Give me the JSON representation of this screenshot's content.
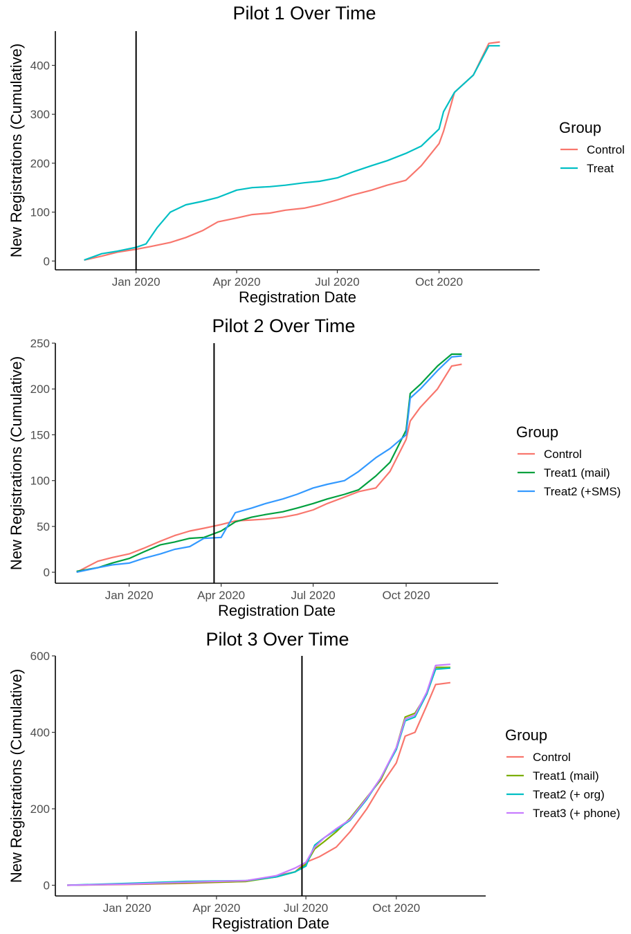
{
  "chart_data": [
    {
      "type": "line",
      "title": "Pilot 1 Over Time",
      "xlabel": "Registration Date",
      "ylabel": "New Registrations (Cumulative)",
      "x_ticks": [
        "Jan 2020",
        "Apr 2020",
        "Jul 2020",
        "Oct 2020"
      ],
      "y_ticks": [
        0,
        100,
        200,
        300,
        400
      ],
      "xlim": [
        "2019-10-20",
        "2020-12-31"
      ],
      "ylim": [
        -18,
        470
      ],
      "vline": "2020-01-01",
      "legend_title": "Group",
      "legend_position": "right",
      "grid": false,
      "series": [
        {
          "name": "Control",
          "color": "#F8766D",
          "x": [
            "2019-11-15",
            "2019-12-01",
            "2019-12-15",
            "2020-01-01",
            "2020-01-15",
            "2020-02-01",
            "2020-02-15",
            "2020-03-01",
            "2020-03-15",
            "2020-04-01",
            "2020-04-15",
            "2020-05-01",
            "2020-05-15",
            "2020-06-01",
            "2020-06-15",
            "2020-07-01",
            "2020-07-15",
            "2020-08-01",
            "2020-08-15",
            "2020-09-01",
            "2020-09-15",
            "2020-10-01",
            "2020-10-05",
            "2020-10-15",
            "2020-11-01",
            "2020-11-15",
            "2020-11-25"
          ],
          "y": [
            2,
            10,
            18,
            24,
            30,
            38,
            48,
            62,
            80,
            88,
            95,
            98,
            104,
            108,
            115,
            125,
            135,
            145,
            155,
            165,
            195,
            240,
            265,
            345,
            380,
            445,
            448
          ]
        },
        {
          "name": "Treat",
          "color": "#00BFC4",
          "x": [
            "2019-11-15",
            "2019-12-01",
            "2019-12-15",
            "2020-01-01",
            "2020-01-10",
            "2020-01-20",
            "2020-02-01",
            "2020-02-15",
            "2020-03-01",
            "2020-03-15",
            "2020-04-01",
            "2020-04-15",
            "2020-05-01",
            "2020-05-15",
            "2020-06-01",
            "2020-06-15",
            "2020-07-01",
            "2020-07-15",
            "2020-08-01",
            "2020-08-15",
            "2020-09-01",
            "2020-09-15",
            "2020-10-01",
            "2020-10-05",
            "2020-10-15",
            "2020-11-01",
            "2020-11-15",
            "2020-11-25"
          ],
          "y": [
            2,
            15,
            20,
            28,
            35,
            68,
            100,
            115,
            122,
            130,
            145,
            150,
            152,
            155,
            160,
            163,
            170,
            182,
            195,
            205,
            220,
            235,
            270,
            305,
            345,
            380,
            440,
            440
          ]
        }
      ]
    },
    {
      "type": "line",
      "title": "Pilot 2 Over Time",
      "xlabel": "Registration Date",
      "ylabel": "New Registrations (Cumulative)",
      "x_ticks": [
        "Jan 2020",
        "Apr 2020",
        "Jul 2020",
        "Oct 2020"
      ],
      "y_ticks": [
        0,
        50,
        100,
        150,
        200,
        250
      ],
      "xlim": [
        "2019-10-20",
        "2020-12-31"
      ],
      "ylim": [
        -12,
        250
      ],
      "vline": "2020-03-25",
      "legend_title": "Group",
      "legend_position": "right",
      "grid": false,
      "series": [
        {
          "name": "Control",
          "color": "#F8766D",
          "x": [
            "2019-11-10",
            "2019-12-01",
            "2019-12-15",
            "2020-01-01",
            "2020-01-15",
            "2020-02-01",
            "2020-02-15",
            "2020-03-01",
            "2020-03-15",
            "2020-04-01",
            "2020-04-15",
            "2020-05-01",
            "2020-05-15",
            "2020-06-01",
            "2020-06-15",
            "2020-07-01",
            "2020-07-15",
            "2020-08-01",
            "2020-08-15",
            "2020-09-01",
            "2020-09-15",
            "2020-10-01",
            "2020-10-05",
            "2020-10-15",
            "2020-11-01",
            "2020-11-15",
            "2020-11-25"
          ],
          "y": [
            0,
            12,
            16,
            20,
            26,
            34,
            40,
            45,
            48,
            52,
            56,
            57,
            58,
            60,
            63,
            68,
            75,
            82,
            88,
            92,
            110,
            145,
            165,
            180,
            200,
            225,
            227
          ]
        },
        {
          "name": "Treat1 (mail)",
          "color": "#00A03E",
          "x": [
            "2019-11-10",
            "2019-12-01",
            "2019-12-15",
            "2020-01-01",
            "2020-01-15",
            "2020-02-01",
            "2020-02-15",
            "2020-03-01",
            "2020-03-15",
            "2020-04-01",
            "2020-04-15",
            "2020-05-01",
            "2020-05-15",
            "2020-06-01",
            "2020-06-15",
            "2020-07-01",
            "2020-07-15",
            "2020-08-01",
            "2020-08-15",
            "2020-09-01",
            "2020-09-15",
            "2020-10-01",
            "2020-10-05",
            "2020-10-15",
            "2020-11-01",
            "2020-11-15",
            "2020-11-25"
          ],
          "y": [
            1,
            5,
            10,
            15,
            22,
            30,
            33,
            37,
            38,
            45,
            55,
            60,
            63,
            66,
            70,
            75,
            80,
            85,
            90,
            105,
            120,
            155,
            195,
            205,
            225,
            238,
            238
          ]
        },
        {
          "name": "Treat2 (+SMS)",
          "color": "#3399FF",
          "x": [
            "2019-11-10",
            "2019-12-01",
            "2019-12-15",
            "2020-01-01",
            "2020-01-15",
            "2020-02-01",
            "2020-02-15",
            "2020-03-01",
            "2020-03-15",
            "2020-04-01",
            "2020-04-15",
            "2020-05-01",
            "2020-05-15",
            "2020-06-01",
            "2020-06-15",
            "2020-07-01",
            "2020-07-15",
            "2020-08-01",
            "2020-08-15",
            "2020-09-01",
            "2020-09-15",
            "2020-10-01",
            "2020-10-05",
            "2020-10-15",
            "2020-11-01",
            "2020-11-15",
            "2020-11-25"
          ],
          "y": [
            0,
            5,
            8,
            10,
            15,
            20,
            25,
            28,
            37,
            38,
            65,
            70,
            75,
            80,
            85,
            92,
            96,
            100,
            110,
            125,
            135,
            150,
            190,
            200,
            220,
            235,
            236
          ]
        }
      ]
    },
    {
      "type": "line",
      "title": "Pilot 3 Over Time",
      "xlabel": "Registration Date",
      "ylabel": "New Registrations (Cumulative)",
      "x_ticks": [
        "Jan 2020",
        "Apr 2020",
        "Jul 2020",
        "Oct 2020"
      ],
      "y_ticks": [
        0,
        200,
        400,
        600
      ],
      "xlim": [
        "2019-10-20",
        "2020-12-31"
      ],
      "ylim": [
        -28,
        600
      ],
      "vline": "2020-06-27",
      "legend_title": "Group",
      "legend_position": "right",
      "grid": false,
      "series": [
        {
          "name": "Control",
          "color": "#F8766D",
          "x": [
            "2019-11-01",
            "2020-01-01",
            "2020-03-01",
            "2020-05-01",
            "2020-06-01",
            "2020-06-20",
            "2020-07-01",
            "2020-07-15",
            "2020-08-01",
            "2020-08-15",
            "2020-09-01",
            "2020-09-15",
            "2020-10-01",
            "2020-10-10",
            "2020-10-20",
            "2020-11-01",
            "2020-11-10",
            "2020-11-25"
          ],
          "y": [
            0,
            2,
            5,
            10,
            25,
            35,
            60,
            75,
            100,
            140,
            200,
            260,
            320,
            390,
            400,
            470,
            525,
            530
          ]
        },
        {
          "name": "Treat1 (mail)",
          "color": "#7CAE00",
          "x": [
            "2019-11-01",
            "2020-01-01",
            "2020-03-01",
            "2020-05-01",
            "2020-06-01",
            "2020-06-20",
            "2020-07-01",
            "2020-07-10",
            "2020-07-20",
            "2020-08-01",
            "2020-08-15",
            "2020-09-01",
            "2020-09-15",
            "2020-10-01",
            "2020-10-10",
            "2020-10-20",
            "2020-11-01",
            "2020-11-10",
            "2020-11-25"
          ],
          "y": [
            0,
            3,
            6,
            10,
            22,
            35,
            55,
            95,
            115,
            140,
            175,
            230,
            275,
            360,
            440,
            450,
            500,
            570,
            570
          ]
        },
        {
          "name": "Treat2 (+ org)",
          "color": "#00BFC4",
          "x": [
            "2019-11-01",
            "2020-01-01",
            "2020-03-01",
            "2020-05-01",
            "2020-06-01",
            "2020-06-20",
            "2020-07-01",
            "2020-07-10",
            "2020-07-20",
            "2020-08-01",
            "2020-08-15",
            "2020-09-01",
            "2020-09-15",
            "2020-10-01",
            "2020-10-10",
            "2020-10-20",
            "2020-11-01",
            "2020-11-10",
            "2020-11-25"
          ],
          "y": [
            0,
            5,
            10,
            12,
            22,
            35,
            50,
            105,
            125,
            145,
            170,
            225,
            280,
            355,
            430,
            440,
            500,
            565,
            568
          ]
        },
        {
          "name": "Treat3 (+ phone)",
          "color": "#C77CFF",
          "x": [
            "2019-11-01",
            "2020-01-01",
            "2020-03-01",
            "2020-05-01",
            "2020-06-01",
            "2020-06-20",
            "2020-07-01",
            "2020-07-10",
            "2020-07-20",
            "2020-08-01",
            "2020-08-15",
            "2020-09-01",
            "2020-09-15",
            "2020-10-01",
            "2020-10-10",
            "2020-10-20",
            "2020-11-01",
            "2020-11-10",
            "2020-11-25"
          ],
          "y": [
            0,
            3,
            8,
            12,
            25,
            45,
            60,
            100,
            125,
            148,
            172,
            228,
            280,
            360,
            435,
            445,
            505,
            575,
            578
          ]
        }
      ]
    }
  ]
}
